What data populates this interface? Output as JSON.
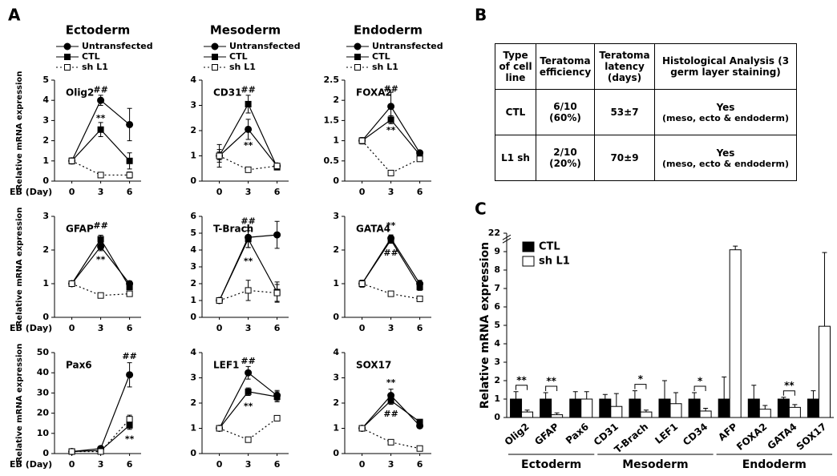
{
  "panel_labels": [
    "A",
    "B",
    "C"
  ],
  "chart_data": [
    {
      "type": "line",
      "title": "Ectoderm",
      "label": "Olig2",
      "ylabel": "Relative mRNA expression",
      "xlabel": "EB (Day)",
      "x": [
        0,
        3,
        6
      ],
      "xlim": [
        -1.8,
        7.2
      ],
      "xticks": [
        0,
        3,
        6
      ],
      "ylim": [
        0,
        5
      ],
      "yticks": [
        0,
        1,
        2,
        3,
        4,
        5
      ],
      "series": [
        {
          "name": "Untransfected",
          "marker": "circle",
          "fill": "#000000",
          "line": "solid",
          "values": [
            1,
            4,
            2.8
          ],
          "errors": [
            0.15,
            0.25,
            0.8
          ]
        },
        {
          "name": "CTL",
          "marker": "square",
          "fill": "#000000",
          "line": "solid",
          "values": [
            1,
            2.55,
            1
          ],
          "errors": [
            0.1,
            0.35,
            0.4
          ]
        },
        {
          "name": "sh L1",
          "marker": "square",
          "fill": "#ffffff",
          "line": "dotted",
          "values": [
            1,
            0.3,
            0.3
          ],
          "errors": [
            0.1,
            0.1,
            0.15
          ]
        }
      ],
      "annotations": [
        {
          "text": "##",
          "x": 3,
          "y": 4.5
        },
        {
          "text": "**",
          "x": 3,
          "y": 3.1
        }
      ]
    },
    {
      "type": "line",
      "title": "Mesoderm",
      "label": "CD31",
      "x": [
        0,
        3,
        6
      ],
      "xlim": [
        -1.8,
        7.2
      ],
      "xticks": [
        0,
        3,
        6
      ],
      "ylim": [
        0,
        4
      ],
      "yticks": [
        0,
        1,
        2,
        3,
        4
      ],
      "series": [
        {
          "name": "Untransfected",
          "marker": "circle",
          "fill": "#000000",
          "line": "solid",
          "values": [
            1,
            2.05,
            0.6
          ],
          "errors": [
            0.45,
            0.4,
            0.1
          ]
        },
        {
          "name": "CTL",
          "marker": "square",
          "fill": "#000000",
          "line": "solid",
          "values": [
            1,
            3.05,
            0.55
          ],
          "errors": [
            0.25,
            0.35,
            0.1
          ]
        },
        {
          "name": "sh L1",
          "marker": "square",
          "fill": "#ffffff",
          "line": "dotted",
          "values": [
            1,
            0.45,
            0.6
          ],
          "errors": [
            0.15,
            0.1,
            0.1
          ]
        }
      ],
      "annotations": [
        {
          "text": "##",
          "x": 3,
          "y": 3.6
        },
        {
          "text": "**",
          "x": 3,
          "y": 1.4
        }
      ]
    },
    {
      "type": "line",
      "title": "Endoderm",
      "label": "FOXA2",
      "x": [
        0,
        3,
        6
      ],
      "xlim": [
        -1.8,
        7.2
      ],
      "xticks": [
        0,
        3,
        6
      ],
      "ylim": [
        0,
        2.5
      ],
      "yticks": [
        0,
        0.5,
        1,
        1.5,
        2,
        2.5
      ],
      "series": [
        {
          "name": "Untransfected",
          "marker": "circle",
          "fill": "#000000",
          "line": "solid",
          "values": [
            1,
            1.85,
            0.7
          ],
          "errors": [
            0.08,
            0.35,
            0.05
          ]
        },
        {
          "name": "CTL",
          "marker": "square",
          "fill": "#000000",
          "line": "solid",
          "values": [
            1,
            1.52,
            0.65
          ],
          "errors": [
            0.05,
            0.1,
            0.05
          ]
        },
        {
          "name": "sh L1",
          "marker": "square",
          "fill": "#ffffff",
          "line": "dotted",
          "values": [
            1,
            0.2,
            0.55
          ],
          "errors": [
            0.05,
            0.05,
            0.05
          ]
        }
      ],
      "annotations": [
        {
          "text": "##",
          "x": 3,
          "y": 2.27
        },
        {
          "text": "**",
          "x": 3,
          "y": 1.25
        }
      ]
    },
    {
      "type": "line",
      "label": "GFAP",
      "ylabel": "Relative mRNA expression",
      "xlabel": "EB (Day)",
      "x": [
        0,
        3,
        6
      ],
      "xlim": [
        -1.8,
        7.2
      ],
      "xticks": [
        0,
        3,
        6
      ],
      "ylim": [
        0,
        3
      ],
      "yticks": [
        0,
        1,
        2,
        3
      ],
      "series": [
        {
          "marker": "circle",
          "fill": "#000000",
          "line": "solid",
          "values": [
            1,
            2.1,
            1
          ],
          "errors": [
            0.05,
            0.12,
            0.08
          ]
        },
        {
          "marker": "square",
          "fill": "#000000",
          "line": "solid",
          "values": [
            1,
            2.32,
            0.9
          ],
          "errors": [
            0.05,
            0.12,
            0.08
          ]
        },
        {
          "marker": "square",
          "fill": "#ffffff",
          "line": "dotted",
          "values": [
            1,
            0.65,
            0.7
          ],
          "errors": [
            0.05,
            0.05,
            0.05
          ]
        }
      ],
      "annotations": [
        {
          "text": "##",
          "x": 3,
          "y": 2.72
        },
        {
          "text": "**",
          "x": 3,
          "y": 1.7
        }
      ]
    },
    {
      "type": "line",
      "label": "T-Brach",
      "x": [
        0,
        3,
        6
      ],
      "xlim": [
        -1.8,
        7.2
      ],
      "xticks": [
        0,
        3,
        6
      ],
      "ylim": [
        0,
        6
      ],
      "yticks": [
        0,
        1,
        2,
        3,
        4,
        5,
        6
      ],
      "series": [
        {
          "marker": "circle",
          "fill": "#000000",
          "line": "solid",
          "values": [
            1,
            4.75,
            4.9
          ],
          "errors": [
            0.1,
            0.6,
            0.8
          ]
        },
        {
          "marker": "square",
          "fill": "#000000",
          "line": "solid",
          "values": [
            1,
            4.65,
            1.5
          ],
          "errors": [
            0.1,
            0.5,
            0.6
          ]
        },
        {
          "marker": "square",
          "fill": "#ffffff",
          "line": "dotted",
          "values": [
            1,
            1.6,
            1.45
          ],
          "errors": [
            0.1,
            0.6,
            0.5
          ]
        }
      ],
      "annotations": [
        {
          "text": "##",
          "x": 3,
          "y": 5.7
        },
        {
          "text": "**",
          "x": 3,
          "y": 3.3
        }
      ]
    },
    {
      "type": "line",
      "label": "GATA4",
      "x": [
        0,
        3,
        6
      ],
      "xlim": [
        -1.8,
        7.2
      ],
      "xticks": [
        0,
        3,
        6
      ],
      "ylim": [
        0,
        3
      ],
      "yticks": [
        0,
        1,
        2,
        3
      ],
      "series": [
        {
          "marker": "circle",
          "fill": "#000000",
          "line": "solid",
          "values": [
            1,
            2.35,
            1
          ],
          "errors": [
            0.1,
            0.1,
            0.1
          ]
        },
        {
          "marker": "square",
          "fill": "#000000",
          "line": "solid",
          "values": [
            1,
            2.3,
            0.9
          ],
          "errors": [
            0.1,
            0.1,
            0.1
          ]
        },
        {
          "marker": "square",
          "fill": "#ffffff",
          "line": "dotted",
          "values": [
            1,
            0.7,
            0.55
          ],
          "errors": [
            0.05,
            0.05,
            0.08
          ]
        }
      ],
      "annotations": [
        {
          "text": "**",
          "x": 3,
          "y": 2.72
        },
        {
          "text": "##",
          "x": 3,
          "y": 1.9
        }
      ]
    },
    {
      "type": "line",
      "label": "Pax6",
      "ylabel": "Relative mRNA expression",
      "xlabel": "EB (Day)",
      "x": [
        0,
        3,
        6
      ],
      "xlim": [
        -1.8,
        7.2
      ],
      "xticks": [
        0,
        3,
        6
      ],
      "ylim": [
        0,
        50
      ],
      "yticks": [
        0,
        10,
        20,
        30,
        40,
        50
      ],
      "series": [
        {
          "marker": "circle",
          "fill": "#000000",
          "line": "solid",
          "values": [
            1,
            2.5,
            39
          ],
          "errors": [
            0.5,
            1,
            6
          ]
        },
        {
          "marker": "square",
          "fill": "#000000",
          "line": "solid",
          "values": [
            1,
            1.5,
            14
          ],
          "errors": [
            0.5,
            0.5,
            2
          ]
        },
        {
          "marker": "square",
          "fill": "#ffffff",
          "line": "dotted",
          "values": [
            1,
            1,
            17
          ],
          "errors": [
            0.5,
            0.5,
            2
          ]
        }
      ],
      "annotations": [
        {
          "text": "##",
          "x": 6,
          "y": 48
        },
        {
          "text": "**",
          "x": 6,
          "y": 7
        }
      ]
    },
    {
      "type": "line",
      "label": "LEF1",
      "x": [
        0,
        3,
        6
      ],
      "xlim": [
        -1.8,
        7.2
      ],
      "xticks": [
        0,
        3,
        6
      ],
      "ylim": [
        0,
        4
      ],
      "yticks": [
        0,
        1,
        2,
        3,
        4
      ],
      "series": [
        {
          "marker": "circle",
          "fill": "#000000",
          "line": "solid",
          "values": [
            1,
            3.2,
            2.3
          ],
          "errors": [
            0.08,
            0.25,
            0.2
          ]
        },
        {
          "marker": "square",
          "fill": "#000000",
          "line": "solid",
          "values": [
            1,
            2.45,
            2.25
          ],
          "errors": [
            0.05,
            0.15,
            0.2
          ]
        },
        {
          "marker": "square",
          "fill": "#ffffff",
          "line": "dotted",
          "values": [
            1,
            0.55,
            1.4
          ],
          "errors": [
            0.05,
            0.05,
            0.1
          ]
        }
      ],
      "annotations": [
        {
          "text": "##",
          "x": 3,
          "y": 3.65
        },
        {
          "text": "**",
          "x": 3,
          "y": 1.85
        }
      ]
    },
    {
      "type": "line",
      "label": "SOX17",
      "x": [
        0,
        3,
        6
      ],
      "xlim": [
        -1.8,
        7.2
      ],
      "xticks": [
        0,
        3,
        6
      ],
      "ylim": [
        0,
        4
      ],
      "yticks": [
        0,
        1,
        2,
        3,
        4
      ],
      "series": [
        {
          "marker": "circle",
          "fill": "#000000",
          "line": "solid",
          "values": [
            1,
            2.3,
            1.1
          ],
          "errors": [
            0.1,
            0.25,
            0.1
          ]
        },
        {
          "marker": "square",
          "fill": "#000000",
          "line": "solid",
          "values": [
            1,
            2.1,
            1.25
          ],
          "errors": [
            0.05,
            0.15,
            0.1
          ]
        },
        {
          "marker": "square",
          "fill": "#ffffff",
          "line": "dotted",
          "values": [
            1,
            0.45,
            0.2
          ],
          "errors": [
            0.05,
            0.1,
            0.05
          ]
        }
      ],
      "annotations": [
        {
          "text": "**",
          "x": 3,
          "y": 2.8
        },
        {
          "text": "##",
          "x": 3,
          "y": 1.55
        }
      ]
    },
    {
      "type": "bar",
      "ylabel": "Relative mRNA expression",
      "categories": [
        "Olig2",
        "GFAP",
        "Pax6",
        "CD31",
        "T-Brach",
        "LEF1",
        "CD34",
        "AFP",
        "FOXA2",
        "GATA4",
        "SOX17"
      ],
      "ylim": [
        0,
        22
      ],
      "ybreak": [
        9.6,
        21.6
      ],
      "yticks": [
        0,
        1,
        2,
        3,
        4,
        5,
        6,
        7,
        8,
        9,
        22
      ],
      "series": [
        {
          "name": "CTL",
          "color": "#000000",
          "values": [
            1,
            1,
            1,
            1,
            1,
            1,
            1,
            1,
            1,
            1,
            1
          ],
          "errors": [
            0.4,
            0.35,
            0.4,
            0.25,
            0.45,
            1,
            0.35,
            1.2,
            0.75,
            0.1,
            0.45
          ]
        },
        {
          "name": "sh L1",
          "color": "#ffffff",
          "values": [
            0.3,
            0.15,
            1,
            0.6,
            0.3,
            0.75,
            0.35,
            9.1,
            0.45,
            0.55,
            4.95
          ],
          "errors": [
            0.1,
            0.1,
            0.4,
            0.7,
            0.1,
            0.6,
            0.15,
            0.2,
            0.2,
            0.15,
            4
          ]
        }
      ],
      "significance": [
        {
          "category": 0,
          "label": "**"
        },
        {
          "category": 1,
          "label": "**"
        },
        {
          "category": 4,
          "label": "*"
        },
        {
          "category": 6,
          "label": "*"
        },
        {
          "category": 9,
          "label": "**"
        }
      ],
      "groups": [
        {
          "name": "Ectoderm",
          "from": 0,
          "to": 2
        },
        {
          "name": "Mesoderm",
          "from": 3,
          "to": 6
        },
        {
          "name": "Endoderm",
          "from": 7,
          "to": 10
        }
      ]
    }
  ],
  "table": {
    "header": [
      "Type of cell line",
      "Teratoma efficiency",
      "Teratoma latency (days)",
      "Histological Analysis (3 germ layer staining)"
    ],
    "rows": [
      [
        "CTL",
        "6/10 (60%)",
        "53±7",
        {
          "main": "Yes",
          "note": "(meso, ecto & endoderm)"
        }
      ],
      [
        "L1 sh",
        "2/10 (20%)",
        "70±9",
        {
          "main": "Yes",
          "note": "(meso, ecto & endoderm)"
        }
      ]
    ]
  }
}
